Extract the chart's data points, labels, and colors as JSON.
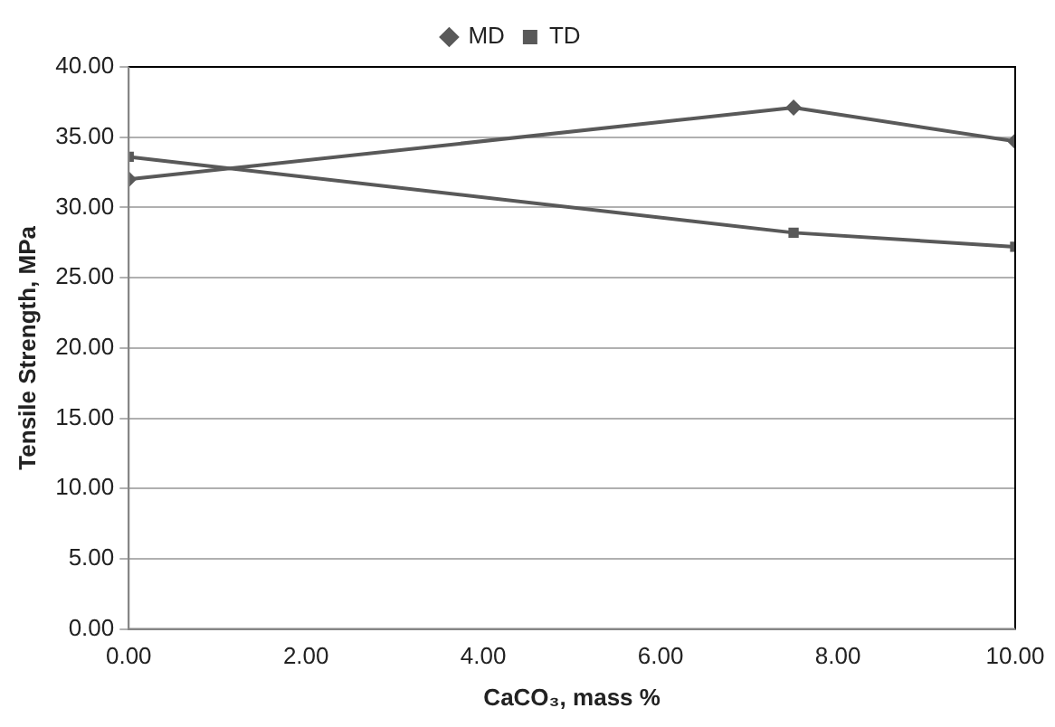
{
  "chart_data": {
    "type": "line",
    "xlabel": "CaCO₃, mass %",
    "ylabel": "Tensile Strength, MPa",
    "x": [
      0,
      7.5,
      10
    ],
    "series": [
      {
        "name": "MD",
        "color": "#595959",
        "values": [
          32.0,
          37.1,
          34.7
        ],
        "marker": "diamond"
      },
      {
        "name": "TD",
        "color": "#595959",
        "values": [
          33.6,
          28.2,
          27.2
        ],
        "marker": "square"
      }
    ],
    "xlim": [
      0,
      10
    ],
    "xticks": [
      {
        "value": 0,
        "label": "0.00"
      },
      {
        "value": 2,
        "label": "2.00"
      },
      {
        "value": 4,
        "label": "4.00"
      },
      {
        "value": 6,
        "label": "6.00"
      },
      {
        "value": 8,
        "label": "8.00"
      },
      {
        "value": 10,
        "label": "10.00"
      }
    ],
    "ylim": [
      0,
      40
    ],
    "yticks": [
      {
        "value": 0,
        "label": "0.00"
      },
      {
        "value": 5,
        "label": "5.00"
      },
      {
        "value": 10,
        "label": "10.00"
      },
      {
        "value": 15,
        "label": "15.00"
      },
      {
        "value": 20,
        "label": "20.00"
      },
      {
        "value": 25,
        "label": "25.00"
      },
      {
        "value": 30,
        "label": "30.00"
      },
      {
        "value": 35,
        "label": "35.00"
      },
      {
        "value": 40,
        "label": "40.00"
      }
    ],
    "grid": "y",
    "legend": "top",
    "line_style": "solid"
  }
}
